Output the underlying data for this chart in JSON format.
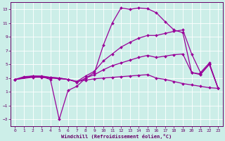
{
  "xlabel": "Windchill (Refroidissement éolien,°C)",
  "bg_color": "#cceee8",
  "line_color": "#990099",
  "xlim": [
    -0.5,
    23.5
  ],
  "ylim": [
    -4,
    14
  ],
  "xticks": [
    0,
    1,
    2,
    3,
    4,
    5,
    6,
    7,
    8,
    9,
    10,
    11,
    12,
    13,
    14,
    15,
    16,
    17,
    18,
    19,
    20,
    21,
    22,
    23
  ],
  "yticks": [
    -3,
    -1,
    1,
    3,
    5,
    7,
    9,
    11,
    13
  ],
  "series": [
    {
      "x": [
        0,
        1,
        2,
        3,
        4,
        5,
        6,
        7,
        8,
        9,
        10,
        11,
        12,
        13,
        14,
        15,
        16,
        17,
        18,
        19,
        20,
        21,
        22,
        23
      ],
      "y": [
        2.8,
        3.2,
        3.3,
        3.2,
        2.8,
        -3.0,
        1.2,
        1.8,
        3.0,
        3.8,
        7.8,
        11.0,
        13.2,
        13.0,
        13.2,
        13.1,
        12.5,
        11.2,
        10.0,
        9.6,
        3.8,
        3.5,
        5.0,
        1.5
      ]
    },
    {
      "x": [
        0,
        2,
        3,
        4,
        5,
        6,
        7,
        8,
        9,
        10,
        11,
        12,
        13,
        14,
        15,
        16,
        17,
        18,
        19,
        20,
        21,
        22,
        23
      ],
      "y": [
        2.8,
        3.3,
        3.3,
        3.1,
        3.0,
        2.8,
        2.5,
        3.3,
        4.0,
        5.5,
        6.5,
        7.5,
        8.2,
        8.8,
        9.2,
        9.2,
        9.5,
        9.8,
        10.0,
        6.5,
        3.8,
        5.2,
        1.5
      ]
    },
    {
      "x": [
        0,
        2,
        3,
        4,
        5,
        6,
        7,
        8,
        9,
        10,
        11,
        12,
        13,
        14,
        15,
        16,
        17,
        18,
        19,
        20,
        21,
        22,
        23
      ],
      "y": [
        2.8,
        3.2,
        3.2,
        3.1,
        3.0,
        2.8,
        2.4,
        3.0,
        3.5,
        4.2,
        4.8,
        5.2,
        5.6,
        6.0,
        6.3,
        6.0,
        6.2,
        6.4,
        6.5,
        3.8,
        3.6,
        5.0,
        1.5
      ]
    },
    {
      "x": [
        0,
        2,
        3,
        4,
        5,
        6,
        7,
        8,
        9,
        10,
        11,
        12,
        13,
        14,
        15,
        16,
        17,
        18,
        19,
        20,
        21,
        22,
        23
      ],
      "y": [
        2.8,
        3.1,
        3.1,
        3.0,
        2.9,
        2.8,
        2.5,
        2.7,
        2.9,
        3.0,
        3.1,
        3.2,
        3.3,
        3.4,
        3.5,
        3.0,
        2.8,
        2.5,
        2.2,
        2.0,
        1.8,
        1.6,
        1.5
      ]
    }
  ]
}
